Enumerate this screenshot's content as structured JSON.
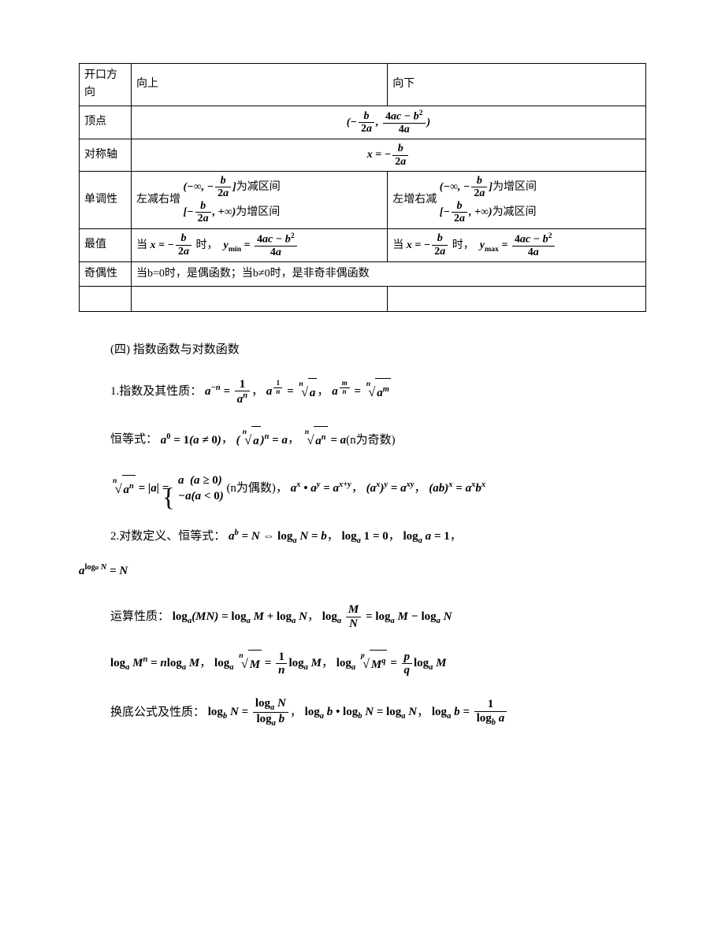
{
  "table": {
    "rows": [
      {
        "label": "开口方向",
        "col1": "向上",
        "col2": "向下",
        "colspan": false
      },
      {
        "label": "顶点",
        "merged": "vertex_formula"
      },
      {
        "label": "对称轴",
        "merged": "axis_formula"
      },
      {
        "label": "单调性",
        "col1": "mono_left",
        "col2": "mono_right"
      },
      {
        "label": "最值",
        "col1": "min_formula",
        "col2": "max_formula"
      },
      {
        "label": "奇偶性",
        "merged_text": "当b=0时，是偶函数；当b≠0时，是非奇非偶函数"
      },
      {
        "label": "",
        "col1": "",
        "col2": ""
      }
    ]
  },
  "sections": {
    "heading4": "(四) 指数函数与对数函数",
    "exp_label": "1.指数及其性质：",
    "identity_label": "恒等式：",
    "log_def_label": "2.对数定义、恒等式：",
    "op_label": "运算性质：",
    "base_change_label": "换底公式及性质：",
    "n_even": "(n为偶数)",
    "n_odd": "(n为奇数)",
    "when": "当",
    "time": "时，"
  }
}
